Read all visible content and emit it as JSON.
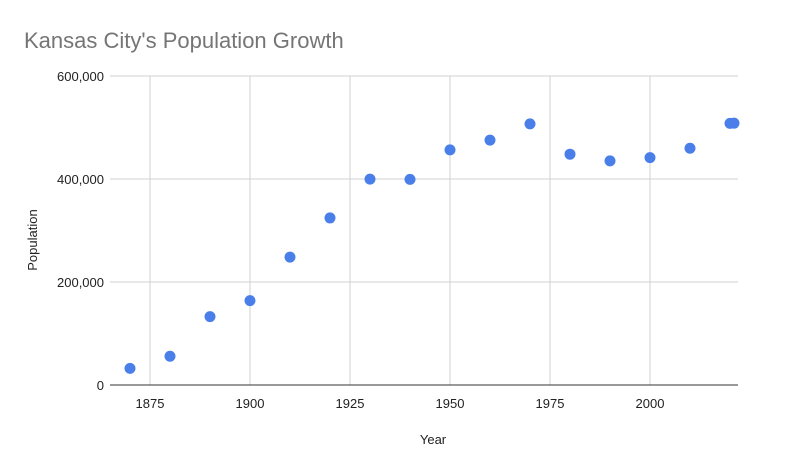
{
  "chart_data": {
    "type": "scatter",
    "title": "Kansas City's Population Growth",
    "xlabel": "Year",
    "ylabel": "Population",
    "xlim": [
      1865,
      2022
    ],
    "ylim": [
      0,
      600000
    ],
    "xticks": [
      1875,
      1900,
      1925,
      1950,
      1975,
      2000
    ],
    "xtick_labels": [
      "1875",
      "1900",
      "1925",
      "1950",
      "1975",
      "2000"
    ],
    "yticks": [
      0,
      200000,
      400000,
      600000
    ],
    "ytick_labels": [
      "0",
      "200,000",
      "400,000",
      "600,000"
    ],
    "grid": true,
    "legend": "none",
    "point_color": "#4a7fea",
    "x": [
      1870,
      1880,
      1890,
      1900,
      1910,
      1920,
      1930,
      1940,
      1950,
      1960,
      1970,
      1980,
      1990,
      2000,
      2010,
      2020,
      2021
    ],
    "y": [
      32260,
      55785,
      132716,
      163752,
      248381,
      324410,
      399746,
      399178,
      456622,
      475539,
      507087,
      448159,
      435146,
      441545,
      459787,
      508090,
      508394
    ]
  }
}
